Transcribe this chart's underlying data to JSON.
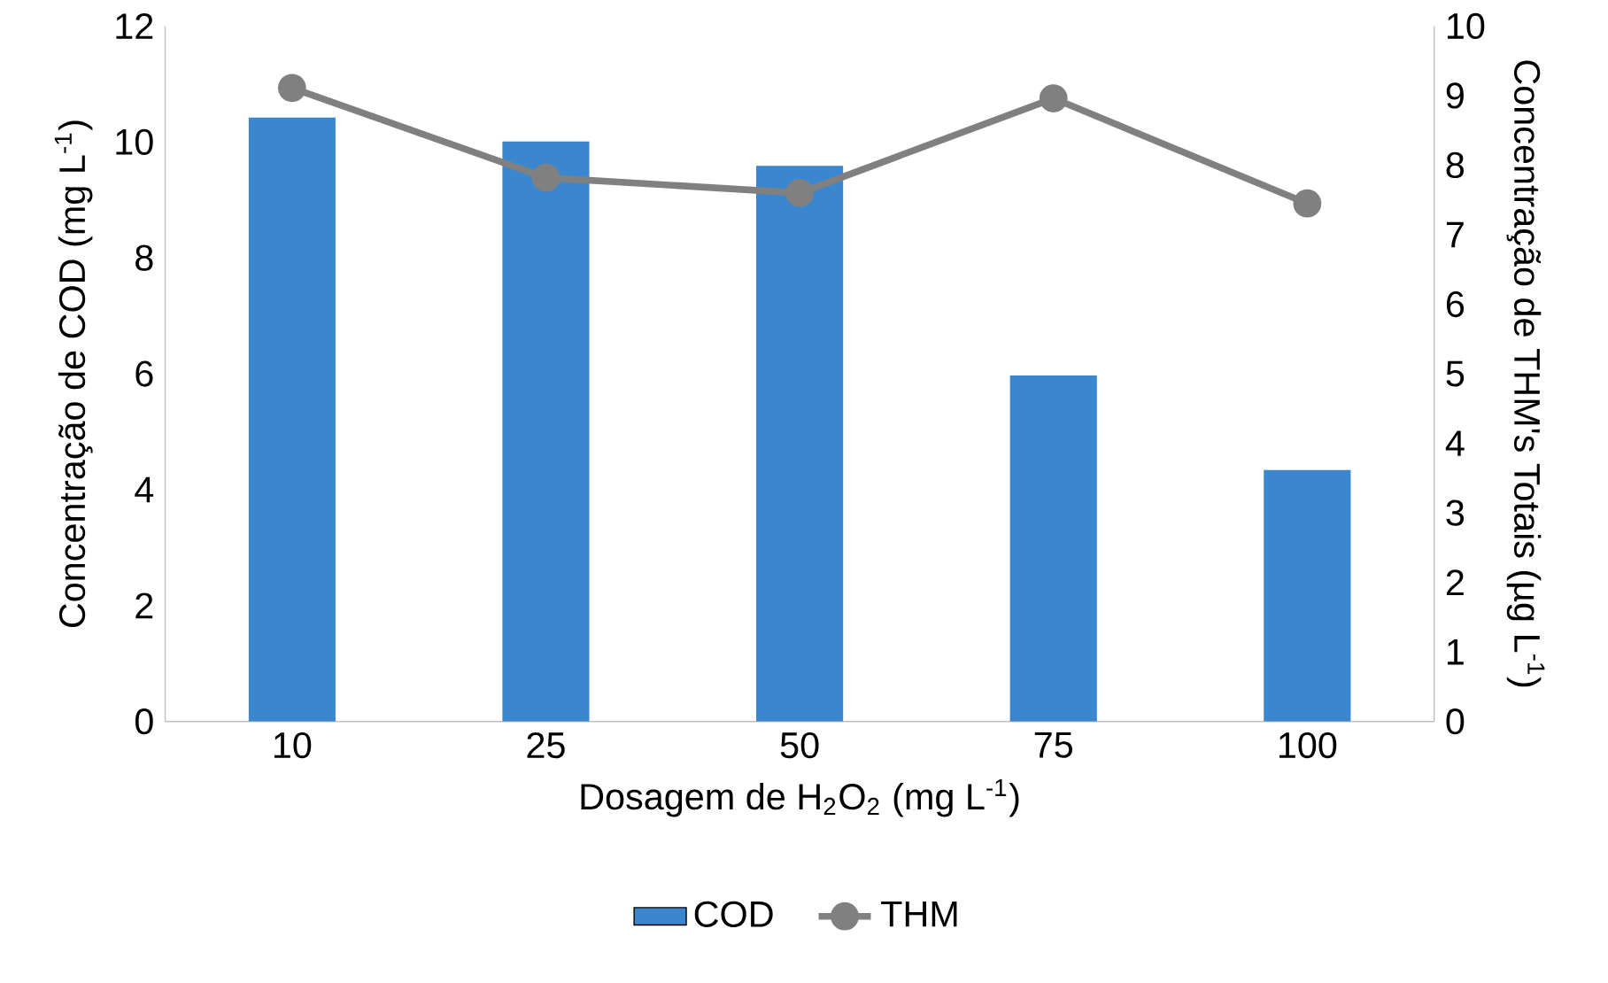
{
  "chart_data": {
    "type": "bar",
    "categories": [
      "10",
      "25",
      "50",
      "75",
      "100"
    ],
    "xlabel": "Dosagem de H$_{2}$O$_{2}$ (mg L$^{-1}$)",
    "ylabel": "Concentração de COD (mg L$^{-1}$)",
    "y2label": "Concentração de THM's Totais (µg L$^{-1}$)",
    "series": [
      {
        "name": "COD",
        "color": "#3a87d0",
        "values": [
          10.42,
          10.01,
          9.59,
          5.97,
          4.34
        ]
      },
      {
        "name": "THM",
        "type": "line",
        "axis": "y2",
        "color": "#808080",
        "marker": "circle",
        "values": [
          9.11,
          7.82,
          7.6,
          8.96,
          7.45
        ]
      }
    ],
    "ylim": [
      0,
      12
    ],
    "yticks": [
      0,
      2,
      4,
      6,
      8,
      10,
      12
    ],
    "y2lim": [
      0,
      10
    ],
    "y2ticks": [
      0,
      1,
      2,
      3,
      4,
      5,
      6,
      7,
      8,
      9,
      10
    ],
    "grid": false,
    "legend": "bottom"
  }
}
